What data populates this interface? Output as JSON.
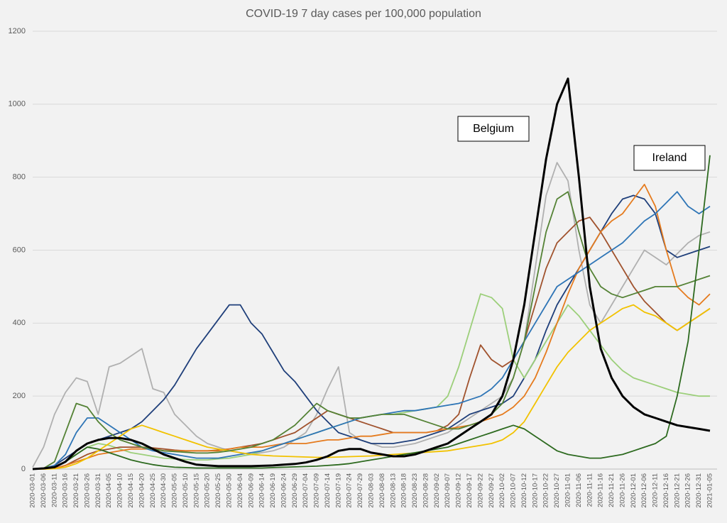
{
  "chart_data": {
    "type": "line",
    "title": "COVID-19 7 day cases per 100,000 population",
    "categories": [
      "2020-03-01",
      "2020-03-06",
      "2020-03-11",
      "2020-03-16",
      "2020-03-21",
      "2020-03-26",
      "2020-03-31",
      "2020-04-05",
      "2020-04-10",
      "2020-04-15",
      "2020-04-20",
      "2020-04-25",
      "2020-04-30",
      "2020-05-05",
      "2020-05-10",
      "2020-05-15",
      "2020-05-20",
      "2020-05-25",
      "2020-05-30",
      "2020-06-04",
      "2020-06-09",
      "2020-06-14",
      "2020-06-19",
      "2020-06-24",
      "2020-06-29",
      "2020-07-04",
      "2020-07-09",
      "2020-07-14",
      "2020-07-19",
      "2020-07-24",
      "2020-07-29",
      "2020-08-03",
      "2020-08-08",
      "2020-08-13",
      "2020-08-18",
      "2020-08-23",
      "2020-08-28",
      "2020-09-02",
      "2020-09-07",
      "2020-09-12",
      "2020-09-17",
      "2020-09-22",
      "2020-09-27",
      "2020-10-02",
      "2020-10-07",
      "2020-10-12",
      "2020-10-17",
      "2020-10-22",
      "2020-10-27",
      "2020-11-01",
      "2020-11-06",
      "2020-11-11",
      "2020-11-16",
      "2020-11-21",
      "2020-11-26",
      "2020-12-01",
      "2020-12-06",
      "2020-12-11",
      "2020-12-16",
      "2020-12-21",
      "2020-12-26",
      "2020-12-31",
      "2021-01-05"
    ],
    "ylim": [
      0,
      1200
    ],
    "yticks": [
      0,
      200,
      400,
      600,
      800,
      1000,
      1200
    ],
    "grid": true,
    "series": [
      {
        "color": "#b0b0b0",
        "values": [
          5,
          60,
          150,
          210,
          250,
          240,
          150,
          280,
          290,
          310,
          330,
          220,
          210,
          150,
          120,
          90,
          70,
          60,
          50,
          45,
          40,
          45,
          50,
          60,
          80,
          100,
          150,
          220,
          280,
          100,
          80,
          70,
          60,
          60,
          65,
          70,
          80,
          90,
          100,
          120,
          140,
          160,
          180,
          200,
          250,
          350,
          550,
          750,
          840,
          790,
          600,
          450,
          400,
          450,
          500,
          550,
          600,
          580,
          560,
          590,
          620,
          640,
          650
        ]
      },
      {
        "color": "#1f3f7a",
        "values": [
          0,
          2,
          10,
          30,
          50,
          70,
          80,
          90,
          100,
          110,
          130,
          160,
          190,
          230,
          280,
          330,
          370,
          410,
          450,
          450,
          400,
          370,
          320,
          270,
          240,
          200,
          160,
          130,
          100,
          90,
          80,
          70,
          70,
          70,
          75,
          80,
          90,
          100,
          110,
          130,
          150,
          160,
          170,
          180,
          200,
          250,
          300,
          380,
          450,
          500,
          550,
          600,
          650,
          700,
          740,
          750,
          740,
          700,
          600,
          580,
          590,
          600,
          610
        ]
      },
      {
        "color": "#9ccf7a",
        "values": [
          0,
          1,
          5,
          20,
          40,
          60,
          70,
          65,
          55,
          45,
          40,
          35,
          30,
          28,
          26,
          25,
          25,
          28,
          30,
          35,
          40,
          50,
          60,
          70,
          80,
          90,
          100,
          110,
          120,
          130,
          140,
          145,
          150,
          150,
          155,
          160,
          165,
          170,
          200,
          280,
          380,
          480,
          470,
          440,
          300,
          250,
          300,
          350,
          400,
          450,
          420,
          380,
          340,
          300,
          270,
          250,
          240,
          230,
          220,
          210,
          205,
          200,
          200
        ]
      },
      {
        "color": "#a0522d",
        "values": [
          0,
          0,
          2,
          10,
          25,
          40,
          50,
          55,
          60,
          60,
          60,
          58,
          55,
          52,
          50,
          50,
          50,
          52,
          55,
          60,
          65,
          70,
          80,
          90,
          100,
          120,
          140,
          160,
          150,
          140,
          130,
          120,
          110,
          100,
          100,
          100,
          100,
          105,
          120,
          150,
          250,
          340,
          300,
          280,
          300,
          350,
          450,
          550,
          620,
          650,
          680,
          690,
          650,
          600,
          550,
          500,
          460,
          430,
          400,
          380,
          400,
          420,
          440
        ]
      },
      {
        "color": "#e57b1e",
        "values": [
          0,
          0,
          2,
          10,
          20,
          30,
          40,
          45,
          50,
          55,
          55,
          55,
          50,
          50,
          50,
          50,
          50,
          50,
          55,
          60,
          60,
          60,
          65,
          70,
          70,
          70,
          75,
          80,
          80,
          85,
          90,
          90,
          95,
          100,
          100,
          100,
          100,
          105,
          110,
          115,
          120,
          130,
          140,
          150,
          170,
          200,
          250,
          320,
          400,
          480,
          550,
          600,
          650,
          680,
          700,
          740,
          780,
          720,
          600,
          500,
          470,
          450,
          480
        ]
      },
      {
        "color": "#2e75b6",
        "values": [
          0,
          1,
          10,
          40,
          100,
          140,
          140,
          120,
          100,
          80,
          60,
          50,
          45,
          40,
          35,
          30,
          30,
          30,
          35,
          40,
          45,
          50,
          60,
          70,
          80,
          90,
          100,
          110,
          120,
          130,
          140,
          145,
          150,
          155,
          160,
          160,
          165,
          170,
          175,
          180,
          190,
          200,
          220,
          250,
          300,
          350,
          400,
          450,
          500,
          520,
          540,
          560,
          580,
          600,
          620,
          650,
          680,
          700,
          730,
          760,
          720,
          700,
          720
        ]
      },
      {
        "color": "#f2c200",
        "values": [
          0,
          0,
          1,
          5,
          15,
          30,
          50,
          70,
          90,
          110,
          120,
          110,
          100,
          90,
          80,
          70,
          60,
          55,
          50,
          45,
          40,
          38,
          36,
          35,
          34,
          33,
          32,
          32,
          33,
          34,
          35,
          36,
          38,
          40,
          42,
          44,
          46,
          48,
          50,
          55,
          60,
          65,
          70,
          80,
          100,
          130,
          180,
          230,
          280,
          320,
          350,
          380,
          400,
          420,
          440,
          450,
          430,
          420,
          400,
          380,
          400,
          420,
          440
        ]
      },
      {
        "color": "#548235",
        "values": [
          0,
          2,
          20,
          100,
          180,
          170,
          130,
          100,
          80,
          70,
          60,
          55,
          50,
          48,
          46,
          44,
          44,
          46,
          50,
          55,
          60,
          70,
          80,
          100,
          120,
          150,
          180,
          160,
          150,
          140,
          140,
          145,
          150,
          150,
          150,
          140,
          130,
          120,
          110,
          110,
          120,
          130,
          150,
          180,
          250,
          350,
          500,
          650,
          740,
          760,
          650,
          550,
          500,
          480,
          470,
          480,
          490,
          500,
          500,
          500,
          510,
          520,
          530
        ]
      },
      {
        "color": "#2d6a1f",
        "values": [
          0,
          1,
          5,
          20,
          40,
          60,
          55,
          45,
          35,
          25,
          18,
          12,
          8,
          5,
          4,
          3,
          3,
          3,
          3,
          3,
          3,
          3,
          4,
          5,
          6,
          7,
          8,
          10,
          12,
          15,
          20,
          25,
          30,
          35,
          40,
          45,
          50,
          55,
          60,
          70,
          80,
          90,
          100,
          110,
          120,
          110,
          90,
          70,
          50,
          40,
          35,
          30,
          30,
          35,
          40,
          50,
          60,
          70,
          90,
          200,
          350,
          600,
          860
        ]
      },
      {
        "color": "#000000",
        "width": 3,
        "values": [
          0,
          2,
          5,
          20,
          50,
          70,
          80,
          85,
          85,
          80,
          70,
          55,
          40,
          30,
          20,
          12,
          10,
          8,
          8,
          8,
          8,
          9,
          10,
          12,
          14,
          18,
          25,
          35,
          50,
          55,
          55,
          45,
          40,
          35,
          35,
          40,
          50,
          60,
          70,
          90,
          110,
          130,
          150,
          200,
          300,
          450,
          650,
          850,
          1000,
          1070,
          800,
          500,
          330,
          250,
          200,
          170,
          150,
          140,
          130,
          120,
          115,
          110,
          105
        ]
      }
    ],
    "annotations": [
      {
        "text": "Belgium"
      },
      {
        "text": "Ireland"
      }
    ]
  }
}
